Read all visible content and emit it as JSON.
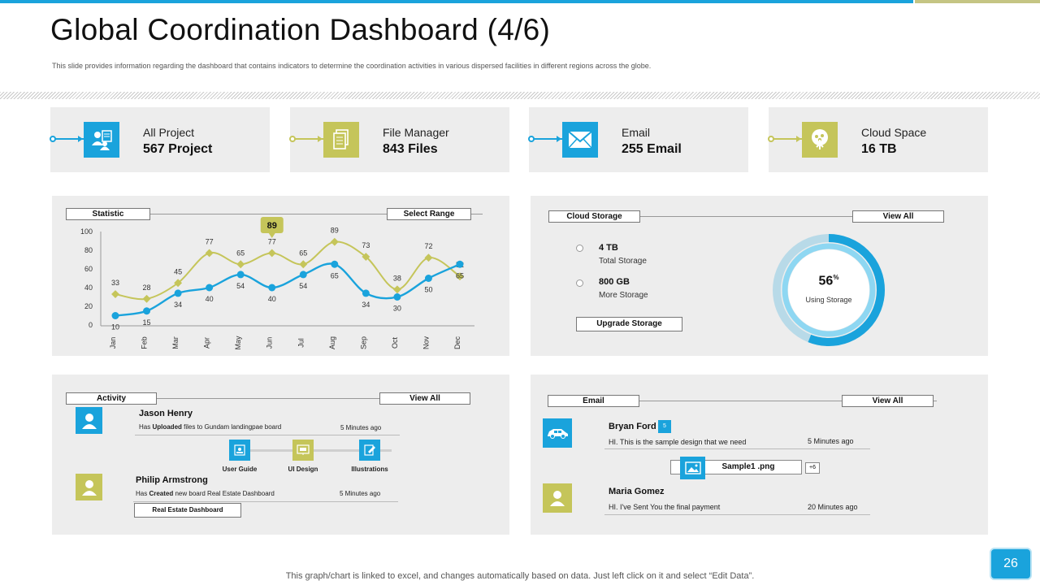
{
  "title": "Global Coordination Dashboard (4/6)",
  "subtitle": "This slide provides information regarding the dashboard  that contains indicators to determine the coordination activities in various dispersed facilities in different regions across the globe.",
  "colors": {
    "blue": "#1aa3dc",
    "olive": "#c5c55a",
    "panel": "#ededed"
  },
  "kpis": [
    {
      "label": "All Project",
      "value": "567 Project",
      "icon": "project-team-icon",
      "color": "#1aa3dc"
    },
    {
      "label": "File Manager",
      "value": "843 Files",
      "icon": "files-icon",
      "color": "#c5c55a"
    },
    {
      "label": "Email",
      "value": "255 Email",
      "icon": "envelope-icon",
      "color": "#1aa3dc"
    },
    {
      "label": "Cloud Space",
      "value": "16 TB",
      "icon": "cloud-tree-icon",
      "color": "#c5c55a"
    }
  ],
  "statistic": {
    "title": "Statistic",
    "range_button": "Select Range",
    "callout": "89"
  },
  "chart_data": {
    "type": "line",
    "categories": [
      "Jan",
      "Feb",
      "Mar",
      "Apr",
      "May",
      "Jun",
      "Jul",
      "Aug",
      "Sep",
      "Oct",
      "Nov",
      "Dec"
    ],
    "series": [
      {
        "values": [
          33,
          28,
          45,
          77,
          65,
          77,
          65,
          89,
          73,
          38,
          72,
          52
        ],
        "color": "#c5c55a"
      },
      {
        "values": [
          10,
          15,
          34,
          40,
          54,
          40,
          54,
          65,
          34,
          30,
          50,
          65
        ],
        "color": "#1aa3dc"
      }
    ],
    "yticks": [
      "0",
      "20",
      "40",
      "60",
      "80",
      "100"
    ],
    "ylim": [
      0,
      100
    ]
  },
  "cloud_storage": {
    "title": "Cloud Storage",
    "view_all": "View All",
    "items": [
      {
        "value": "4 TB",
        "label": "Total Storage"
      },
      {
        "value": "800 GB",
        "label": "More Storage"
      }
    ],
    "upgrade_button": "Upgrade Storage",
    "percent": 56,
    "percent_number": "56",
    "percent_sign": "%",
    "percent_label": "Using Storage"
  },
  "activity": {
    "title": "Activity",
    "view_all": "View All",
    "entries": [
      {
        "name": "Jason Henry",
        "action_prefix": "Has ",
        "action_bold": "Uploaded",
        "action_rest": " files to Gundam landingpae  board",
        "time": "5 Minutes ago"
      },
      {
        "name": "Philip Armstrong",
        "action_prefix": "Has ",
        "action_bold": "Created",
        "action_rest": " new  board  Real Estate Dashboard",
        "time": "5 Minutes ago",
        "button": "Real Estate Dashboard"
      }
    ],
    "files": [
      {
        "label": "User Guide",
        "icon": "user-guide-icon"
      },
      {
        "label": "UI Design",
        "icon": "ui-design-icon"
      },
      {
        "label": "Illustrations",
        "icon": "illustrations-icon"
      }
    ]
  },
  "email_panel": {
    "title": "Email",
    "view_all": "View All",
    "messages": [
      {
        "name": "Bryan Ford",
        "badge": "5",
        "text": "HI.  This is the sample design that we need",
        "time": "5 Minutes ago"
      },
      {
        "name": "Maria Gomez",
        "text": "HI.  I've Sent You the final payment",
        "time": "20 Minutes ago"
      }
    ],
    "attachment": {
      "name": "Sample1 .png",
      "more": "+6"
    }
  },
  "footer": "This graph/chart is linked to excel,  and changes automatically based on data. Just left click on it and select “Edit Data”.",
  "page_number": "26"
}
